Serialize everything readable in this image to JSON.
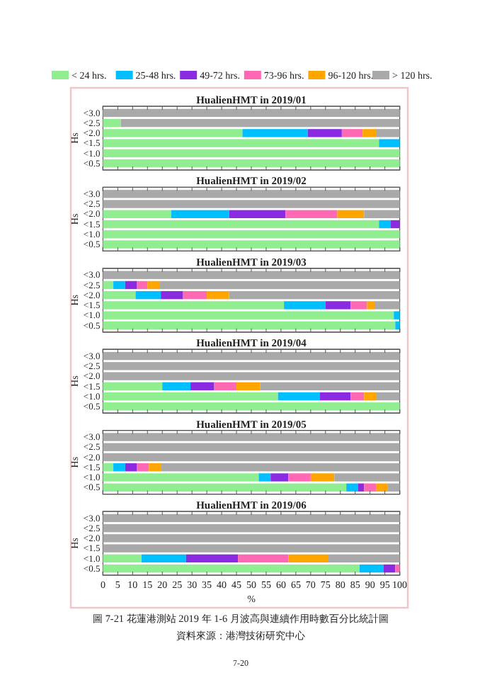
{
  "chart_data": [
    {
      "type": "bar",
      "orientation": "horizontal",
      "stacked": true,
      "title": "HualienHMT in 2019/01",
      "ylabel": "Hs",
      "categories": [
        "<3.0",
        "<2.5",
        "<2.0",
        "<1.5",
        "<1.0",
        "<0.5"
      ],
      "xlim": [
        0,
        100
      ],
      "xticks": [
        0,
        5,
        10,
        15,
        20,
        25,
        30,
        35,
        40,
        45,
        50,
        55,
        60,
        65,
        70,
        75,
        80,
        85,
        90,
        95,
        100
      ],
      "tick_labels": "y",
      "legend": "top",
      "series": [
        {
          "name": "< 24 hrs.",
          "color": "#90ee90",
          "values": [
            0,
            6,
            47,
            93,
            100,
            100
          ]
        },
        {
          "name": "25-48 hrs.",
          "color": "#00bfff",
          "values": [
            0,
            0,
            22,
            7,
            0,
            0
          ]
        },
        {
          "name": "49-72 hrs.",
          "color": "#8a2be2",
          "values": [
            0,
            0,
            11.5,
            0,
            0,
            0
          ]
        },
        {
          "name": "73-96 hrs.",
          "color": "#ff69b4",
          "values": [
            0,
            0,
            7,
            0,
            0,
            0
          ]
        },
        {
          "name": "96-120 hrs.",
          "color": "#ffa500",
          "values": [
            0,
            0,
            4.5,
            0,
            0,
            0
          ]
        },
        {
          "name": "> 120 hrs.",
          "color": "#a9a9a9",
          "values": [
            100,
            94,
            8,
            0,
            0,
            0
          ]
        }
      ]
    },
    {
      "type": "bar",
      "orientation": "horizontal",
      "stacked": true,
      "title": "HualienHMT in 2019/02",
      "ylabel": "Hs",
      "categories": [
        "<3.0",
        "<2.5",
        "<2.0",
        "<1.5",
        "<1.0",
        "<0.5"
      ],
      "xlim": [
        0,
        100
      ],
      "xticks": [
        0,
        5,
        10,
        15,
        20,
        25,
        30,
        35,
        40,
        45,
        50,
        55,
        60,
        65,
        70,
        75,
        80,
        85,
        90,
        95,
        100
      ],
      "tick_labels": "y",
      "series": [
        {
          "color": "#90ee90",
          "values": [
            0,
            0,
            23,
            93,
            100,
            100
          ]
        },
        {
          "color": "#00bfff",
          "values": [
            0,
            0,
            19.5,
            4,
            0,
            0
          ]
        },
        {
          "color": "#8a2be2",
          "values": [
            0,
            0,
            19,
            3,
            0,
            0
          ]
        },
        {
          "color": "#ff69b4",
          "values": [
            0,
            0,
            17.5,
            0,
            0,
            0
          ]
        },
        {
          "color": "#ffa500",
          "values": [
            0,
            0,
            9,
            0,
            0,
            0
          ]
        },
        {
          "color": "#a9a9a9",
          "values": [
            100,
            100,
            12,
            0,
            0,
            0
          ]
        }
      ]
    },
    {
      "type": "bar",
      "orientation": "horizontal",
      "stacked": true,
      "title": "HualienHMT in 2019/03",
      "ylabel": "Hs",
      "categories": [
        "<3.0",
        "<2.5",
        "<2.0",
        "<1.5",
        "<1.0",
        "<0.5"
      ],
      "xlim": [
        0,
        100
      ],
      "xticks": [
        0,
        5,
        10,
        15,
        20,
        25,
        30,
        35,
        40,
        45,
        50,
        55,
        60,
        65,
        70,
        75,
        80,
        85,
        90,
        95,
        100
      ],
      "tick_labels": "y",
      "series": [
        {
          "color": "#90ee90",
          "values": [
            0,
            3.5,
            11,
            61,
            98,
            98.5
          ]
        },
        {
          "color": "#00bfff",
          "values": [
            0,
            4,
            8.5,
            14,
            2,
            1.5
          ]
        },
        {
          "color": "#8a2be2",
          "values": [
            0,
            4,
            7.5,
            8.5,
            0,
            0
          ]
        },
        {
          "color": "#ff69b4",
          "values": [
            0,
            3.5,
            8,
            5.5,
            0,
            0
          ]
        },
        {
          "color": "#ffa500",
          "values": [
            0,
            4,
            7.5,
            2.5,
            0,
            0
          ]
        },
        {
          "color": "#a9a9a9",
          "values": [
            100,
            81,
            57.5,
            8.5,
            0,
            0
          ]
        }
      ]
    },
    {
      "type": "bar",
      "orientation": "horizontal",
      "stacked": true,
      "title": "HualienHMT in 2019/04",
      "ylabel": "Hs",
      "categories": [
        "<3.0",
        "<2.5",
        "<2.0",
        "<1.5",
        "<1.0",
        "<0.5"
      ],
      "xlim": [
        0,
        100
      ],
      "xticks": [
        0,
        5,
        10,
        15,
        20,
        25,
        30,
        35,
        40,
        45,
        50,
        55,
        60,
        65,
        70,
        75,
        80,
        85,
        90,
        95,
        100
      ],
      "tick_labels": "y",
      "series": [
        {
          "color": "#90ee90",
          "values": [
            0,
            0,
            0,
            20,
            59,
            100
          ]
        },
        {
          "color": "#00bfff",
          "values": [
            0,
            0,
            0,
            9.5,
            14,
            0
          ]
        },
        {
          "color": "#8a2be2",
          "values": [
            0,
            0,
            0,
            8,
            10.5,
            0
          ]
        },
        {
          "color": "#ff69b4",
          "values": [
            0,
            0,
            0,
            7.5,
            4.5,
            0
          ]
        },
        {
          "color": "#ffa500",
          "values": [
            0,
            0,
            0,
            8,
            4,
            0
          ]
        },
        {
          "color": "#a9a9a9",
          "values": [
            100,
            100,
            100,
            47,
            8,
            0
          ]
        }
      ]
    },
    {
      "type": "bar",
      "orientation": "horizontal",
      "stacked": true,
      "title": "HualienHMT in 2019/05",
      "ylabel": "Hs",
      "categories": [
        "<3.0",
        "<2.5",
        "<2.0",
        "<1.5",
        "<1.0",
        "<0.5"
      ],
      "xlim": [
        0,
        100
      ],
      "xticks": [
        0,
        5,
        10,
        15,
        20,
        25,
        30,
        35,
        40,
        45,
        50,
        55,
        60,
        65,
        70,
        75,
        80,
        85,
        90,
        95,
        100
      ],
      "tick_labels": "y",
      "series": [
        {
          "color": "#90ee90",
          "values": [
            0,
            0,
            0,
            3.5,
            52.5,
            82
          ]
        },
        {
          "color": "#00bfff",
          "values": [
            0,
            0,
            0,
            4,
            4,
            4
          ]
        },
        {
          "color": "#8a2be2",
          "values": [
            0,
            0,
            0,
            4,
            6,
            2
          ]
        },
        {
          "color": "#ff69b4",
          "values": [
            0,
            0,
            0,
            4,
            7.5,
            4
          ]
        },
        {
          "color": "#ffa500",
          "values": [
            0,
            0,
            0,
            4,
            8,
            4
          ]
        },
        {
          "color": "#a9a9a9",
          "values": [
            100,
            100,
            100,
            80.5,
            22,
            4
          ]
        }
      ]
    },
    {
      "type": "bar",
      "orientation": "horizontal",
      "stacked": true,
      "title": "HualienHMT in 2019/06",
      "ylabel": "Hs",
      "xlabel": "%",
      "categories": [
        "<3.0",
        "<2.5",
        "<2.0",
        "<1.5",
        "<1.0",
        "<0.5"
      ],
      "xlim": [
        0,
        100
      ],
      "xticks": [
        0,
        5,
        10,
        15,
        20,
        25,
        30,
        35,
        40,
        45,
        50,
        55,
        60,
        65,
        70,
        75,
        80,
        85,
        90,
        95,
        100
      ],
      "annotations": [
        "圖 7-21 花蓮港測站 2019 年 1-6 月波高與連續作用時數百分比統計圖",
        "資料來源：港灣技術研究中心",
        "7-20"
      ],
      "series": [
        {
          "color": "#90ee90",
          "values": [
            0,
            0,
            0,
            0,
            13,
            86.5
          ]
        },
        {
          "color": "#00bfff",
          "values": [
            0,
            0,
            0,
            0,
            15,
            8
          ]
        },
        {
          "color": "#8a2be2",
          "values": [
            0,
            0,
            0,
            0,
            17.5,
            4
          ]
        },
        {
          "color": "#ff69b4",
          "values": [
            0,
            0,
            0,
            0,
            17,
            1.5
          ]
        },
        {
          "color": "#ffa500",
          "values": [
            0,
            0,
            0,
            0,
            13.5,
            0
          ]
        },
        {
          "color": "#a9a9a9",
          "values": [
            100,
            100,
            100,
            100,
            24,
            0
          ]
        }
      ]
    }
  ]
}
